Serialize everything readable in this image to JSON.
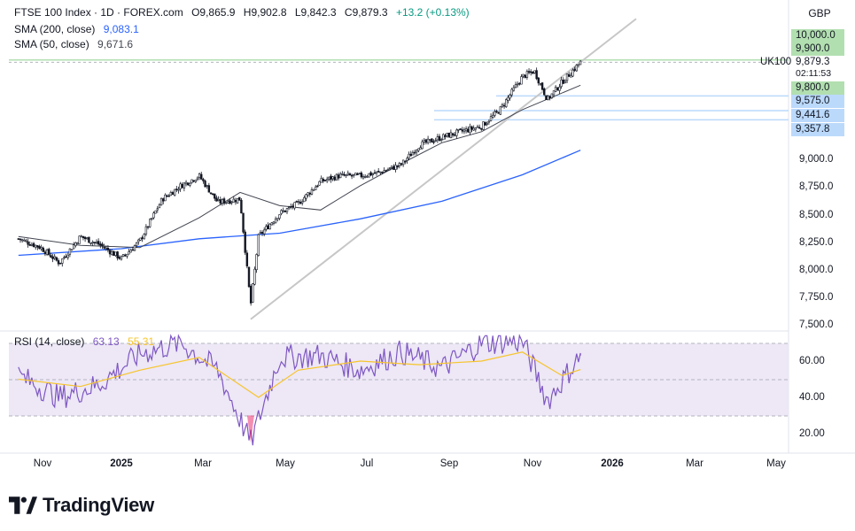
{
  "header": {
    "symbol": "FTSE 100 Index · 1D · FOREX.com",
    "open": "O9,865.9",
    "high": "H9,902.8",
    "low": "L9,842.3",
    "close": "C9,879.3",
    "change": "+13.2 (+0.13%)",
    "sma200_label": "SMA (200, close)",
    "sma200_value": "9,083.1",
    "sma50_label": "SMA (50, close)",
    "sma50_value": "9,671.6",
    "rsi_label": "RSI (14, close)",
    "rsi_value": "63.13",
    "rsi_ma_value": "55.31"
  },
  "currency_button": "GBP",
  "symbol_tag": "UK100",
  "countdown": "02:11:53",
  "colors": {
    "up": "#089981",
    "candle": "#131722",
    "sma200": "#2962ff",
    "sma50": "#434651",
    "rsi": "#7e57c2",
    "rsi_ma": "#f7c52b",
    "trendline": "#c7c7c7",
    "green_level": "#b2dfb0",
    "blue_level": "#bbd9fb",
    "rsi_band": "#ede7f6"
  },
  "price_badges": {
    "green": [
      "10,000.0",
      "9,900.0",
      "9,800.0"
    ],
    "blue": [
      "9,575.0",
      "9,441.6",
      "9,357.8"
    ],
    "last": "9,879.3"
  },
  "price_ticks": [
    "9,000.0",
    "8,750.0",
    "8,500.0",
    "8,250.0",
    "8,000.0",
    "7,750.0",
    "7,500.0"
  ],
  "rsi_ticks": [
    "60.00",
    "40.00",
    "20.00"
  ],
  "time_ticks": [
    "Nov",
    "2025",
    "Mar",
    "May",
    "Jul",
    "Sep",
    "Nov",
    "2026",
    "Mar",
    "May"
  ],
  "brand": "TradingView",
  "chart_data": {
    "type": "candlestick",
    "series": [
      {
        "name": "FTSE 100 Index",
        "kind": "candles",
        "x": [
          "2024-10-15",
          "2024-11-01",
          "2024-11-15",
          "2024-12-01",
          "2024-12-15",
          "2025-01-01",
          "2025-01-15",
          "2025-02-01",
          "2025-02-15",
          "2025-03-01",
          "2025-03-15",
          "2025-04-01",
          "2025-04-09",
          "2025-04-15",
          "2025-05-01",
          "2025-05-15",
          "2025-06-01",
          "2025-06-15",
          "2025-07-01",
          "2025-07-15",
          "2025-08-01",
          "2025-08-15",
          "2025-09-01",
          "2025-09-15",
          "2025-10-01",
          "2025-10-15",
          "2025-11-01",
          "2025-11-10",
          "2025-11-20",
          "2025-12-01",
          "2025-12-15"
        ],
        "y": [
          8280,
          8200,
          8060,
          8300,
          8230,
          8100,
          8260,
          8640,
          8760,
          8850,
          8610,
          8640,
          7680,
          8300,
          8510,
          8600,
          8800,
          8850,
          8850,
          8880,
          8950,
          9130,
          9200,
          9250,
          9300,
          9450,
          9750,
          9800,
          9540,
          9700,
          9879
        ]
      },
      {
        "name": "SMA (200, close)",
        "kind": "line",
        "x": [
          "2024-10-15",
          "2025-01-01",
          "2025-03-01",
          "2025-05-01",
          "2025-07-01",
          "2025-09-01",
          "2025-11-01",
          "2025-12-15"
        ],
        "y": [
          8130,
          8190,
          8280,
          8330,
          8460,
          8620,
          8860,
          9083
        ]
      },
      {
        "name": "SMA (50, close)",
        "kind": "line",
        "x": [
          "2024-10-15",
          "2024-12-01",
          "2025-01-15",
          "2025-03-01",
          "2025-04-01",
          "2025-05-01",
          "2025-06-01",
          "2025-07-01",
          "2025-08-01",
          "2025-09-01",
          "2025-10-01",
          "2025-11-01",
          "2025-12-15"
        ],
        "y": [
          8300,
          8220,
          8200,
          8470,
          8700,
          8580,
          8540,
          8760,
          8960,
          9150,
          9250,
          9450,
          9671
        ]
      },
      {
        "name": "RSI (14, close)",
        "kind": "line",
        "pane": "rsi",
        "x": [
          "2024-10-15",
          "2024-11-15",
          "2024-12-15",
          "2025-01-15",
          "2025-02-15",
          "2025-03-15",
          "2025-04-09",
          "2025-05-01",
          "2025-06-01",
          "2025-07-01",
          "2025-08-01",
          "2025-09-01",
          "2025-10-01",
          "2025-11-01",
          "2025-11-20",
          "2025-12-15"
        ],
        "y": [
          52,
          40,
          47,
          64,
          70,
          55,
          15,
          62,
          63,
          55,
          65,
          56,
          70,
          71,
          38,
          63.13
        ]
      },
      {
        "name": "RSI MA",
        "kind": "line",
        "pane": "rsi",
        "x": [
          "2024-10-15",
          "2024-12-01",
          "2025-01-15",
          "2025-03-01",
          "2025-04-15",
          "2025-05-15",
          "2025-07-01",
          "2025-08-15",
          "2025-10-01",
          "2025-11-01",
          "2025-12-01",
          "2025-12-15"
        ],
        "y": [
          50,
          46,
          55,
          62,
          40,
          55,
          60,
          58,
          60,
          65,
          52,
          55.31
        ]
      }
    ],
    "price_axis": {
      "range": [
        7500,
        10000
      ]
    },
    "rsi_axis": {
      "range": [
        20,
        60
      ],
      "bands": [
        70,
        50,
        30
      ]
    },
    "horizontal_levels": {
      "green": [
        9900
      ],
      "blue": [
        9575,
        9441.6,
        9357.8
      ]
    },
    "trendline": {
      "x": [
        "2025-04-09",
        "2025-12-15"
      ],
      "y": [
        7550,
        9880
      ]
    },
    "grid": false,
    "legend": "top-left"
  }
}
